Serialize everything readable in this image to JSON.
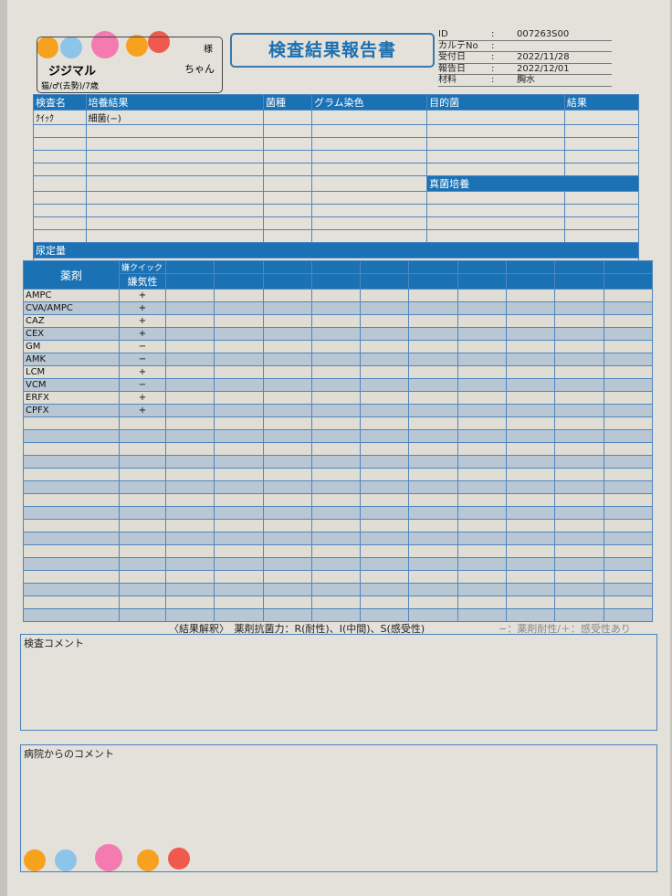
{
  "patient": {
    "honorific": "様",
    "name": "ジジマル",
    "suffix": "ちゃん",
    "details": "猫/♂(去勢)/7歳"
  },
  "title": "検査結果報告書",
  "info": [
    {
      "label": "ID",
      "value": "007263S00"
    },
    {
      "label": "カルテNo",
      "value": ""
    },
    {
      "label": "受付日",
      "value": "2022/11/28"
    },
    {
      "label": "報告日",
      "value": "2022/12/01"
    },
    {
      "label": "材料",
      "value": "胸水"
    }
  ],
  "culture": {
    "headers": [
      "検査名",
      "培養結果",
      "菌種",
      "グラム染色",
      "目的菌",
      "結果"
    ],
    "rows": [
      {
        "test": "ｸｲｯｸ",
        "result": "細菌(−)"
      }
    ],
    "fungal_label": "真菌培養",
    "urine_label": "尿定量"
  },
  "drugs": {
    "header": "薬剤",
    "col_top": "嫌クイック",
    "col_sub": "嫌気性",
    "rows": [
      {
        "name": "AMPC",
        "v": "+"
      },
      {
        "name": "CVA/AMPC",
        "v": "+"
      },
      {
        "name": "CAZ",
        "v": "+"
      },
      {
        "name": "CEX",
        "v": "+"
      },
      {
        "name": "GM",
        "v": "−"
      },
      {
        "name": "AMK",
        "v": "−"
      },
      {
        "name": "LCM",
        "v": "+"
      },
      {
        "name": "VCM",
        "v": "−"
      },
      {
        "name": "ERFX",
        "v": "+"
      },
      {
        "name": "CPFX",
        "v": "+"
      }
    ]
  },
  "legend": "〈結果解釈〉　薬剤抗菌力：R(耐性)、I(中間)、S(感受性)",
  "legend_right": "−：薬剤耐性/＋：感受性あり",
  "comment_label": "検査コメント",
  "hospital_comment_label": "病院からのコメント",
  "colors": {
    "accent": "#1a72b5",
    "paper": "#e3e1da"
  }
}
